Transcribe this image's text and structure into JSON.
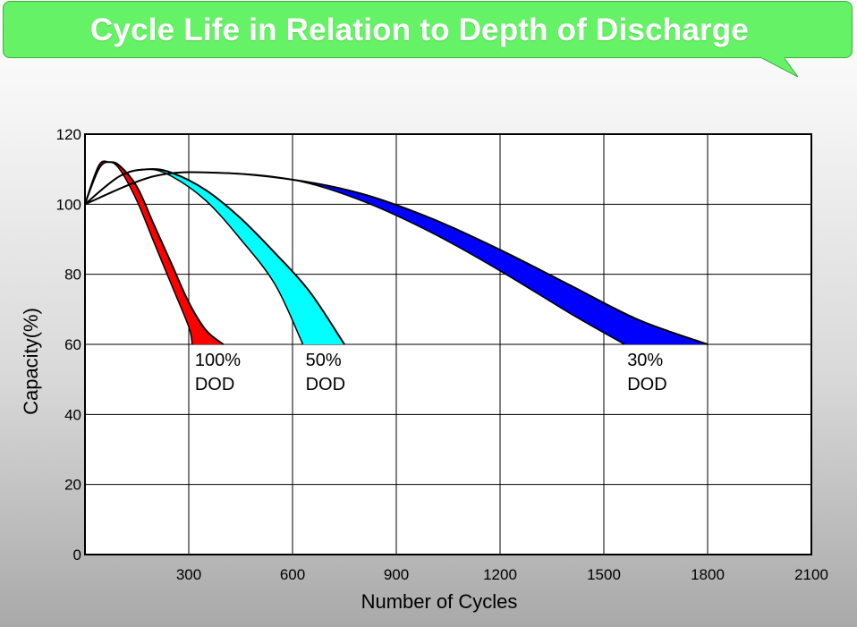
{
  "header": {
    "title": "Cycle Life in Relation to Depth of Discharge"
  },
  "chart_data": {
    "type": "area",
    "title": "Cycle Life in Relation to Depth of Discharge",
    "xlabel": "Number of Cycles",
    "ylabel": "Capacity(%)",
    "xlim": [
      0,
      2100
    ],
    "ylim": [
      0,
      120
    ],
    "x_ticks": [
      300,
      600,
      900,
      1200,
      1500,
      1800,
      2100
    ],
    "y_ticks": [
      0,
      20,
      40,
      60,
      80,
      100,
      120
    ],
    "grid": true,
    "series": [
      {
        "name_lines": [
          "100%",
          "DOD"
        ],
        "color": "#ff0000",
        "label_at": [
          310,
          60
        ],
        "upper": [
          [
            0,
            100
          ],
          [
            40,
            111
          ],
          [
            70,
            112
          ],
          [
            100,
            111
          ],
          [
            150,
            105
          ],
          [
            200,
            94
          ],
          [
            250,
            83
          ],
          [
            300,
            72
          ],
          [
            350,
            64
          ],
          [
            400,
            60
          ]
        ],
        "lower": [
          [
            0,
            100
          ],
          [
            40,
            110
          ],
          [
            70,
            112
          ],
          [
            100,
            110
          ],
          [
            150,
            101
          ],
          [
            200,
            89
          ],
          [
            250,
            77
          ],
          [
            300,
            65
          ],
          [
            310,
            60
          ]
        ]
      },
      {
        "name_lines": [
          "50%",
          "DOD"
        ],
        "color": "#00ffff",
        "label_at": [
          630,
          60
        ],
        "upper": [
          [
            0,
            100
          ],
          [
            100,
            108
          ],
          [
            180,
            110
          ],
          [
            250,
            109
          ],
          [
            350,
            104
          ],
          [
            450,
            96
          ],
          [
            550,
            86
          ],
          [
            650,
            75
          ],
          [
            750,
            60
          ]
        ],
        "lower": [
          [
            0,
            100
          ],
          [
            100,
            108
          ],
          [
            180,
            110
          ],
          [
            250,
            108
          ],
          [
            350,
            101
          ],
          [
            450,
            90
          ],
          [
            550,
            77
          ],
          [
            630,
            60
          ]
        ]
      },
      {
        "name_lines": [
          "30%",
          "DOD"
        ],
        "color": "#0000ff",
        "label_at": [
          1560,
          60
        ],
        "upper": [
          [
            0,
            100
          ],
          [
            200,
            108
          ],
          [
            380,
            109
          ],
          [
            600,
            107
          ],
          [
            800,
            103
          ],
          [
            1000,
            96
          ],
          [
            1200,
            87
          ],
          [
            1400,
            77
          ],
          [
            1600,
            67
          ],
          [
            1800,
            60
          ]
        ],
        "lower": [
          [
            0,
            100
          ],
          [
            200,
            108
          ],
          [
            380,
            109
          ],
          [
            600,
            107
          ],
          [
            800,
            101
          ],
          [
            1000,
            92
          ],
          [
            1200,
            81
          ],
          [
            1400,
            69
          ],
          [
            1560,
            60
          ]
        ]
      }
    ]
  }
}
